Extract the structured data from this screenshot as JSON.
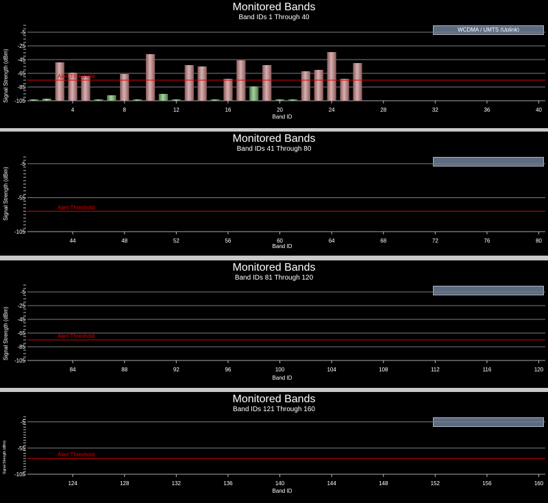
{
  "chart_data": [
    {
      "type": "bar",
      "title": "Monitored Bands",
      "subtitle": "Band IDs 1 Through 40",
      "xlabel": "Band ID",
      "ylabel": "Signal Strength (dBm)",
      "legend": "WCDMA / UMTS (Uplink)",
      "threshold_label": "Alert Threshold",
      "threshold": -75,
      "ylim": [
        -105,
        5
      ],
      "yticks": [
        -5,
        -25,
        -45,
        -65,
        -85,
        -105
      ],
      "xlim": [
        0.5,
        40.5
      ],
      "xticks": [
        4,
        8,
        12,
        16,
        20,
        24,
        28,
        32,
        36,
        40
      ],
      "band_ids": [
        1,
        2,
        3,
        4,
        5,
        6,
        7,
        8,
        9,
        10,
        11,
        12,
        13,
        14,
        15,
        16,
        17,
        18,
        19,
        20,
        21,
        22,
        23,
        24,
        25,
        26
      ],
      "values": [
        -103,
        -102,
        -49,
        -64,
        -69,
        -103,
        -97,
        -66,
        -103,
        -37,
        -95,
        -103,
        -53,
        -55,
        -103,
        -73,
        -46,
        -84,
        -53,
        -103,
        -103,
        -62,
        -60,
        -34,
        -73,
        -50
      ]
    },
    {
      "type": "bar",
      "title": "Monitored Bands",
      "subtitle": "Band IDs 41 Through 80",
      "xlabel": "Band ID",
      "ylabel": "Signal Strength (dBm)",
      "threshold_label": "Alert Threshold",
      "threshold": -75,
      "ylim": [
        -105,
        5
      ],
      "yticks": [
        -5,
        -55,
        -105
      ],
      "xlim": [
        40.5,
        80.5
      ],
      "xticks": [
        44,
        48,
        52,
        56,
        60,
        64,
        68,
        72,
        76,
        80
      ],
      "band_ids": [],
      "values": []
    },
    {
      "type": "bar",
      "title": "Monitored Bands",
      "subtitle": "Band IDs 81 Through 120",
      "xlabel": "Band ID",
      "ylabel": "Signal Strength (dBm)",
      "threshold_label": "Alert Threshold",
      "threshold": -75,
      "ylim": [
        -105,
        5
      ],
      "yticks": [
        -5,
        -25,
        -45,
        -65,
        -85,
        -105
      ],
      "xlim": [
        80.5,
        120.5
      ],
      "xticks": [
        84,
        88,
        92,
        96,
        100,
        104,
        108,
        112,
        116,
        120
      ],
      "band_ids": [],
      "values": []
    },
    {
      "type": "bar",
      "title": "Monitored Bands",
      "subtitle": "Band IDs 121 Through 160",
      "xlabel": "Band ID",
      "ylabel": "Signal Strength (dBm)",
      "threshold_label": "Alert Threshold",
      "threshold": -75,
      "ylim": [
        -105,
        5
      ],
      "yticks": [
        -5,
        -55,
        -105
      ],
      "xlim": [
        120.5,
        160.5
      ],
      "xticks": [
        124,
        128,
        132,
        136,
        140,
        144,
        148,
        152,
        156,
        160
      ],
      "band_ids": [],
      "values": []
    }
  ],
  "colors": {
    "threshold": "#e00000",
    "above_threshold_bar": "#d8b0b0",
    "below_threshold_bar": "#a8d0a0",
    "legend_box": "#5c6b80",
    "grid": "#808080"
  }
}
